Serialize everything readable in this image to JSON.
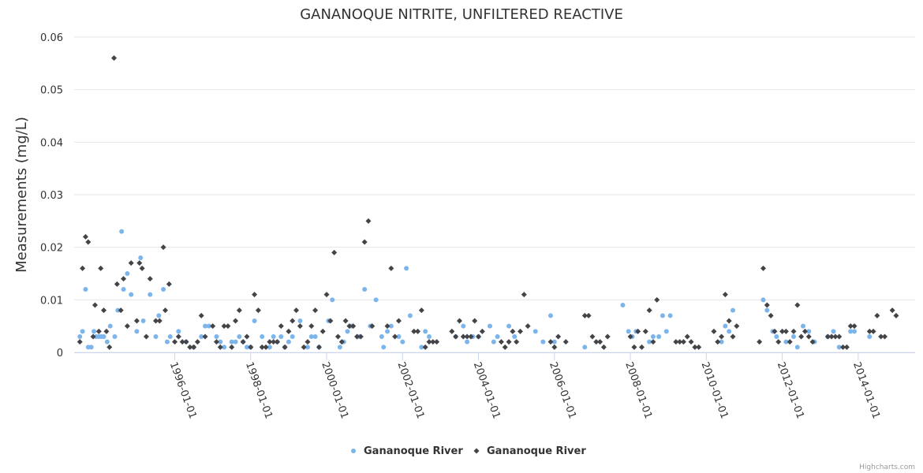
{
  "chart_data": {
    "type": "scatter",
    "title": "GANANOQUE NITRITE, UNFILTERED REACTIVE",
    "ylabel": "Measurements (mg/L)",
    "xlabel": "",
    "ylim": [
      0,
      0.06
    ],
    "yticks": [
      "0",
      "0.01",
      "0.02",
      "0.03",
      "0.04",
      "0.05",
      "0.06"
    ],
    "xlim": [
      1993.35,
      2015.5
    ],
    "xticks": [
      {
        "year": 1996,
        "label": "1996-01-01"
      },
      {
        "year": 1998,
        "label": "1998-01-01"
      },
      {
        "year": 2000,
        "label": "2000-01-01"
      },
      {
        "year": 2002,
        "label": "2002-01-01"
      },
      {
        "year": 2004,
        "label": "2004-01-01"
      },
      {
        "year": 2006,
        "label": "2006-01-01"
      },
      {
        "year": 2008,
        "label": "2008-01-01"
      },
      {
        "year": 2010,
        "label": "2010-01-01"
      },
      {
        "year": 2012,
        "label": "2012-01-01"
      },
      {
        "year": 2014,
        "label": "2014-01-01"
      }
    ],
    "series": [
      {
        "name": "Gananoque River",
        "color": "#7cb5ec",
        "marker": "circle",
        "points": [
          [
            1993.5,
            0.003
          ],
          [
            1993.57,
            0.004
          ],
          [
            1993.65,
            0.012
          ],
          [
            1993.72,
            0.001
          ],
          [
            1993.8,
            0.001
          ],
          [
            1993.87,
            0.004
          ],
          [
            1993.93,
            0.003
          ],
          [
            1994.0,
            0.003
          ],
          [
            1994.07,
            0.003
          ],
          [
            1994.13,
            0.003
          ],
          [
            1994.22,
            0.002
          ],
          [
            1994.3,
            0.005
          ],
          [
            1994.42,
            0.003
          ],
          [
            1994.5,
            0.008
          ],
          [
            1994.6,
            0.023
          ],
          [
            1994.65,
            0.012
          ],
          [
            1994.75,
            0.015
          ],
          [
            1994.85,
            0.011
          ],
          [
            1995.0,
            0.004
          ],
          [
            1995.1,
            0.018
          ],
          [
            1995.17,
            0.006
          ],
          [
            1995.35,
            0.011
          ],
          [
            1995.5,
            0.003
          ],
          [
            1995.58,
            0.007
          ],
          [
            1995.7,
            0.012
          ],
          [
            1995.8,
            0.002
          ],
          [
            1995.88,
            0.003
          ],
          [
            1996.1,
            0.004
          ],
          [
            1996.3,
            0.002
          ],
          [
            1996.5,
            0.001
          ],
          [
            1996.7,
            0.003
          ],
          [
            1996.8,
            0.005
          ],
          [
            1996.9,
            0.005
          ],
          [
            1997.1,
            0.003
          ],
          [
            1997.2,
            0.002
          ],
          [
            1997.3,
            0.001
          ],
          [
            1997.5,
            0.002
          ],
          [
            1997.6,
            0.002
          ],
          [
            1997.7,
            0.003
          ],
          [
            1997.8,
            0.002
          ],
          [
            1997.9,
            0.001
          ],
          [
            1998.0,
            0.001
          ],
          [
            1998.1,
            0.006
          ],
          [
            1998.3,
            0.003
          ],
          [
            1998.5,
            0.001
          ],
          [
            1998.6,
            0.003
          ],
          [
            1998.7,
            0.002
          ],
          [
            1998.8,
            0.003
          ],
          [
            1998.9,
            0.001
          ],
          [
            1999.0,
            0.002
          ],
          [
            1999.1,
            0.003
          ],
          [
            1999.3,
            0.006
          ],
          [
            1999.5,
            0.001
          ],
          [
            1999.6,
            0.003
          ],
          [
            1999.7,
            0.003
          ],
          [
            1999.8,
            0.001
          ],
          [
            2000.05,
            0.006
          ],
          [
            2000.15,
            0.01
          ],
          [
            2000.35,
            0.001
          ],
          [
            2000.45,
            0.002
          ],
          [
            2000.55,
            0.004
          ],
          [
            2000.65,
            0.005
          ],
          [
            2000.85,
            0.003
          ],
          [
            2001.0,
            0.012
          ],
          [
            2001.15,
            0.005
          ],
          [
            2001.3,
            0.01
          ],
          [
            2001.45,
            0.003
          ],
          [
            2001.5,
            0.001
          ],
          [
            2001.6,
            0.004
          ],
          [
            2001.7,
            0.005
          ],
          [
            2001.9,
            0.003
          ],
          [
            2002.0,
            0.002
          ],
          [
            2002.1,
            0.016
          ],
          [
            2002.2,
            0.007
          ],
          [
            2002.5,
            0.001
          ],
          [
            2002.6,
            0.004
          ],
          [
            2002.7,
            0.003
          ],
          [
            2003.4,
            0.003
          ],
          [
            2003.6,
            0.005
          ],
          [
            2003.7,
            0.002
          ],
          [
            2003.85,
            0.003
          ],
          [
            2004.0,
            0.003
          ],
          [
            2004.3,
            0.005
          ],
          [
            2004.4,
            0.002
          ],
          [
            2004.5,
            0.003
          ],
          [
            2004.8,
            0.005
          ],
          [
            2004.95,
            0.003
          ],
          [
            2005.5,
            0.004
          ],
          [
            2005.7,
            0.002
          ],
          [
            2005.9,
            0.007
          ],
          [
            2006.0,
            0.002
          ],
          [
            2006.8,
            0.001
          ],
          [
            2007.8,
            0.009
          ],
          [
            2007.95,
            0.004
          ],
          [
            2008.05,
            0.003
          ],
          [
            2008.15,
            0.004
          ],
          [
            2008.5,
            0.002
          ],
          [
            2008.6,
            0.003
          ],
          [
            2008.75,
            0.003
          ],
          [
            2008.85,
            0.007
          ],
          [
            2008.95,
            0.004
          ],
          [
            2009.05,
            0.007
          ],
          [
            2010.4,
            0.002
          ],
          [
            2010.5,
            0.005
          ],
          [
            2010.6,
            0.004
          ],
          [
            2010.7,
            0.008
          ],
          [
            2011.5,
            0.01
          ],
          [
            2011.6,
            0.008
          ],
          [
            2011.75,
            0.004
          ],
          [
            2011.85,
            0.003
          ],
          [
            2012.1,
            0.002
          ],
          [
            2012.3,
            0.003
          ],
          [
            2012.4,
            0.001
          ],
          [
            2012.55,
            0.005
          ],
          [
            2012.7,
            0.004
          ],
          [
            2012.85,
            0.002
          ],
          [
            2013.2,
            0.003
          ],
          [
            2013.35,
            0.004
          ],
          [
            2013.5,
            0.001
          ],
          [
            2013.8,
            0.004
          ],
          [
            2013.9,
            0.004
          ],
          [
            2014.3,
            0.003
          ]
        ]
      },
      {
        "name": "Gananoque River",
        "color": "#434348",
        "marker": "diamond",
        "points": [
          [
            1993.5,
            0.002
          ],
          [
            1993.57,
            0.016
          ],
          [
            1993.65,
            0.022
          ],
          [
            1993.72,
            0.021
          ],
          [
            1993.85,
            0.003
          ],
          [
            1993.9,
            0.009
          ],
          [
            1994.0,
            0.004
          ],
          [
            1994.05,
            0.016
          ],
          [
            1994.13,
            0.008
          ],
          [
            1994.2,
            0.004
          ],
          [
            1994.28,
            0.001
          ],
          [
            1994.4,
            0.056
          ],
          [
            1994.48,
            0.013
          ],
          [
            1994.58,
            0.008
          ],
          [
            1994.65,
            0.014
          ],
          [
            1994.75,
            0.005
          ],
          [
            1994.85,
            0.017
          ],
          [
            1995.0,
            0.006
          ],
          [
            1995.07,
            0.017
          ],
          [
            1995.14,
            0.016
          ],
          [
            1995.25,
            0.003
          ],
          [
            1995.35,
            0.014
          ],
          [
            1995.5,
            0.006
          ],
          [
            1995.6,
            0.006
          ],
          [
            1995.7,
            0.02
          ],
          [
            1995.75,
            0.008
          ],
          [
            1995.85,
            0.013
          ],
          [
            1996.0,
            0.002
          ],
          [
            1996.1,
            0.003
          ],
          [
            1996.2,
            0.002
          ],
          [
            1996.3,
            0.002
          ],
          [
            1996.4,
            0.001
          ],
          [
            1996.5,
            0.001
          ],
          [
            1996.6,
            0.002
          ],
          [
            1996.7,
            0.007
          ],
          [
            1996.8,
            0.003
          ],
          [
            1997.0,
            0.005
          ],
          [
            1997.1,
            0.002
          ],
          [
            1997.2,
            0.001
          ],
          [
            1997.3,
            0.005
          ],
          [
            1997.4,
            0.005
          ],
          [
            1997.5,
            0.001
          ],
          [
            1997.6,
            0.006
          ],
          [
            1997.7,
            0.008
          ],
          [
            1997.8,
            0.002
          ],
          [
            1997.9,
            0.003
          ],
          [
            1998.0,
            0.001
          ],
          [
            1998.1,
            0.011
          ],
          [
            1998.2,
            0.008
          ],
          [
            1998.3,
            0.001
          ],
          [
            1998.4,
            0.001
          ],
          [
            1998.5,
            0.002
          ],
          [
            1998.6,
            0.002
          ],
          [
            1998.7,
            0.002
          ],
          [
            1998.8,
            0.005
          ],
          [
            1998.9,
            0.001
          ],
          [
            1999.0,
            0.004
          ],
          [
            1999.1,
            0.006
          ],
          [
            1999.2,
            0.008
          ],
          [
            1999.3,
            0.005
          ],
          [
            1999.4,
            0.001
          ],
          [
            1999.5,
            0.002
          ],
          [
            1999.6,
            0.005
          ],
          [
            1999.7,
            0.008
          ],
          [
            1999.8,
            0.001
          ],
          [
            1999.9,
            0.004
          ],
          [
            2000.0,
            0.011
          ],
          [
            2000.1,
            0.006
          ],
          [
            2000.2,
            0.019
          ],
          [
            2000.3,
            0.003
          ],
          [
            2000.4,
            0.002
          ],
          [
            2000.5,
            0.006
          ],
          [
            2000.6,
            0.005
          ],
          [
            2000.7,
            0.005
          ],
          [
            2000.8,
            0.003
          ],
          [
            2000.9,
            0.003
          ],
          [
            2001.0,
            0.021
          ],
          [
            2001.1,
            0.025
          ],
          [
            2001.2,
            0.005
          ],
          [
            2001.6,
            0.005
          ],
          [
            2001.7,
            0.016
          ],
          [
            2001.8,
            0.003
          ],
          [
            2001.9,
            0.006
          ],
          [
            2002.3,
            0.004
          ],
          [
            2002.4,
            0.004
          ],
          [
            2002.5,
            0.008
          ],
          [
            2002.6,
            0.001
          ],
          [
            2002.7,
            0.002
          ],
          [
            2002.8,
            0.002
          ],
          [
            2002.9,
            0.002
          ],
          [
            2003.3,
            0.004
          ],
          [
            2003.4,
            0.003
          ],
          [
            2003.5,
            0.006
          ],
          [
            2003.6,
            0.003
          ],
          [
            2003.7,
            0.003
          ],
          [
            2003.8,
            0.003
          ],
          [
            2003.9,
            0.006
          ],
          [
            2004.0,
            0.003
          ],
          [
            2004.1,
            0.004
          ],
          [
            2004.6,
            0.002
          ],
          [
            2004.7,
            0.001
          ],
          [
            2004.8,
            0.002
          ],
          [
            2004.9,
            0.004
          ],
          [
            2005.0,
            0.002
          ],
          [
            2005.1,
            0.004
          ],
          [
            2005.2,
            0.011
          ],
          [
            2005.3,
            0.005
          ],
          [
            2005.9,
            0.002
          ],
          [
            2006.0,
            0.001
          ],
          [
            2006.1,
            0.003
          ],
          [
            2006.3,
            0.002
          ],
          [
            2006.8,
            0.007
          ],
          [
            2006.9,
            0.007
          ],
          [
            2007.0,
            0.003
          ],
          [
            2007.1,
            0.002
          ],
          [
            2007.2,
            0.002
          ],
          [
            2007.3,
            0.001
          ],
          [
            2007.4,
            0.003
          ],
          [
            2008.0,
            0.003
          ],
          [
            2008.1,
            0.001
          ],
          [
            2008.2,
            0.004
          ],
          [
            2008.3,
            0.001
          ],
          [
            2008.4,
            0.004
          ],
          [
            2008.5,
            0.008
          ],
          [
            2008.6,
            0.002
          ],
          [
            2008.7,
            0.01
          ],
          [
            2009.2,
            0.002
          ],
          [
            2009.3,
            0.002
          ],
          [
            2009.4,
            0.002
          ],
          [
            2009.5,
            0.003
          ],
          [
            2009.6,
            0.002
          ],
          [
            2009.7,
            0.001
          ],
          [
            2009.8,
            0.001
          ],
          [
            2010.2,
            0.004
          ],
          [
            2010.3,
            0.002
          ],
          [
            2010.4,
            0.003
          ],
          [
            2010.5,
            0.011
          ],
          [
            2010.6,
            0.006
          ],
          [
            2010.7,
            0.003
          ],
          [
            2010.8,
            0.005
          ],
          [
            2011.4,
            0.002
          ],
          [
            2011.5,
            0.016
          ],
          [
            2011.6,
            0.009
          ],
          [
            2011.7,
            0.007
          ],
          [
            2011.8,
            0.004
          ],
          [
            2011.9,
            0.002
          ],
          [
            2012.0,
            0.004
          ],
          [
            2012.1,
            0.004
          ],
          [
            2012.2,
            0.002
          ],
          [
            2012.3,
            0.004
          ],
          [
            2012.4,
            0.009
          ],
          [
            2012.5,
            0.003
          ],
          [
            2012.6,
            0.004
          ],
          [
            2012.7,
            0.003
          ],
          [
            2012.8,
            0.002
          ],
          [
            2013.2,
            0.003
          ],
          [
            2013.3,
            0.003
          ],
          [
            2013.4,
            0.003
          ],
          [
            2013.5,
            0.003
          ],
          [
            2013.6,
            0.001
          ],
          [
            2013.7,
            0.001
          ],
          [
            2013.8,
            0.005
          ],
          [
            2013.9,
            0.005
          ],
          [
            2014.3,
            0.004
          ],
          [
            2014.4,
            0.004
          ],
          [
            2014.5,
            0.007
          ],
          [
            2014.6,
            0.003
          ],
          [
            2014.7,
            0.003
          ],
          [
            2014.9,
            0.008
          ],
          [
            2015.0,
            0.007
          ]
        ]
      }
    ]
  },
  "credits": "Highcharts.com"
}
